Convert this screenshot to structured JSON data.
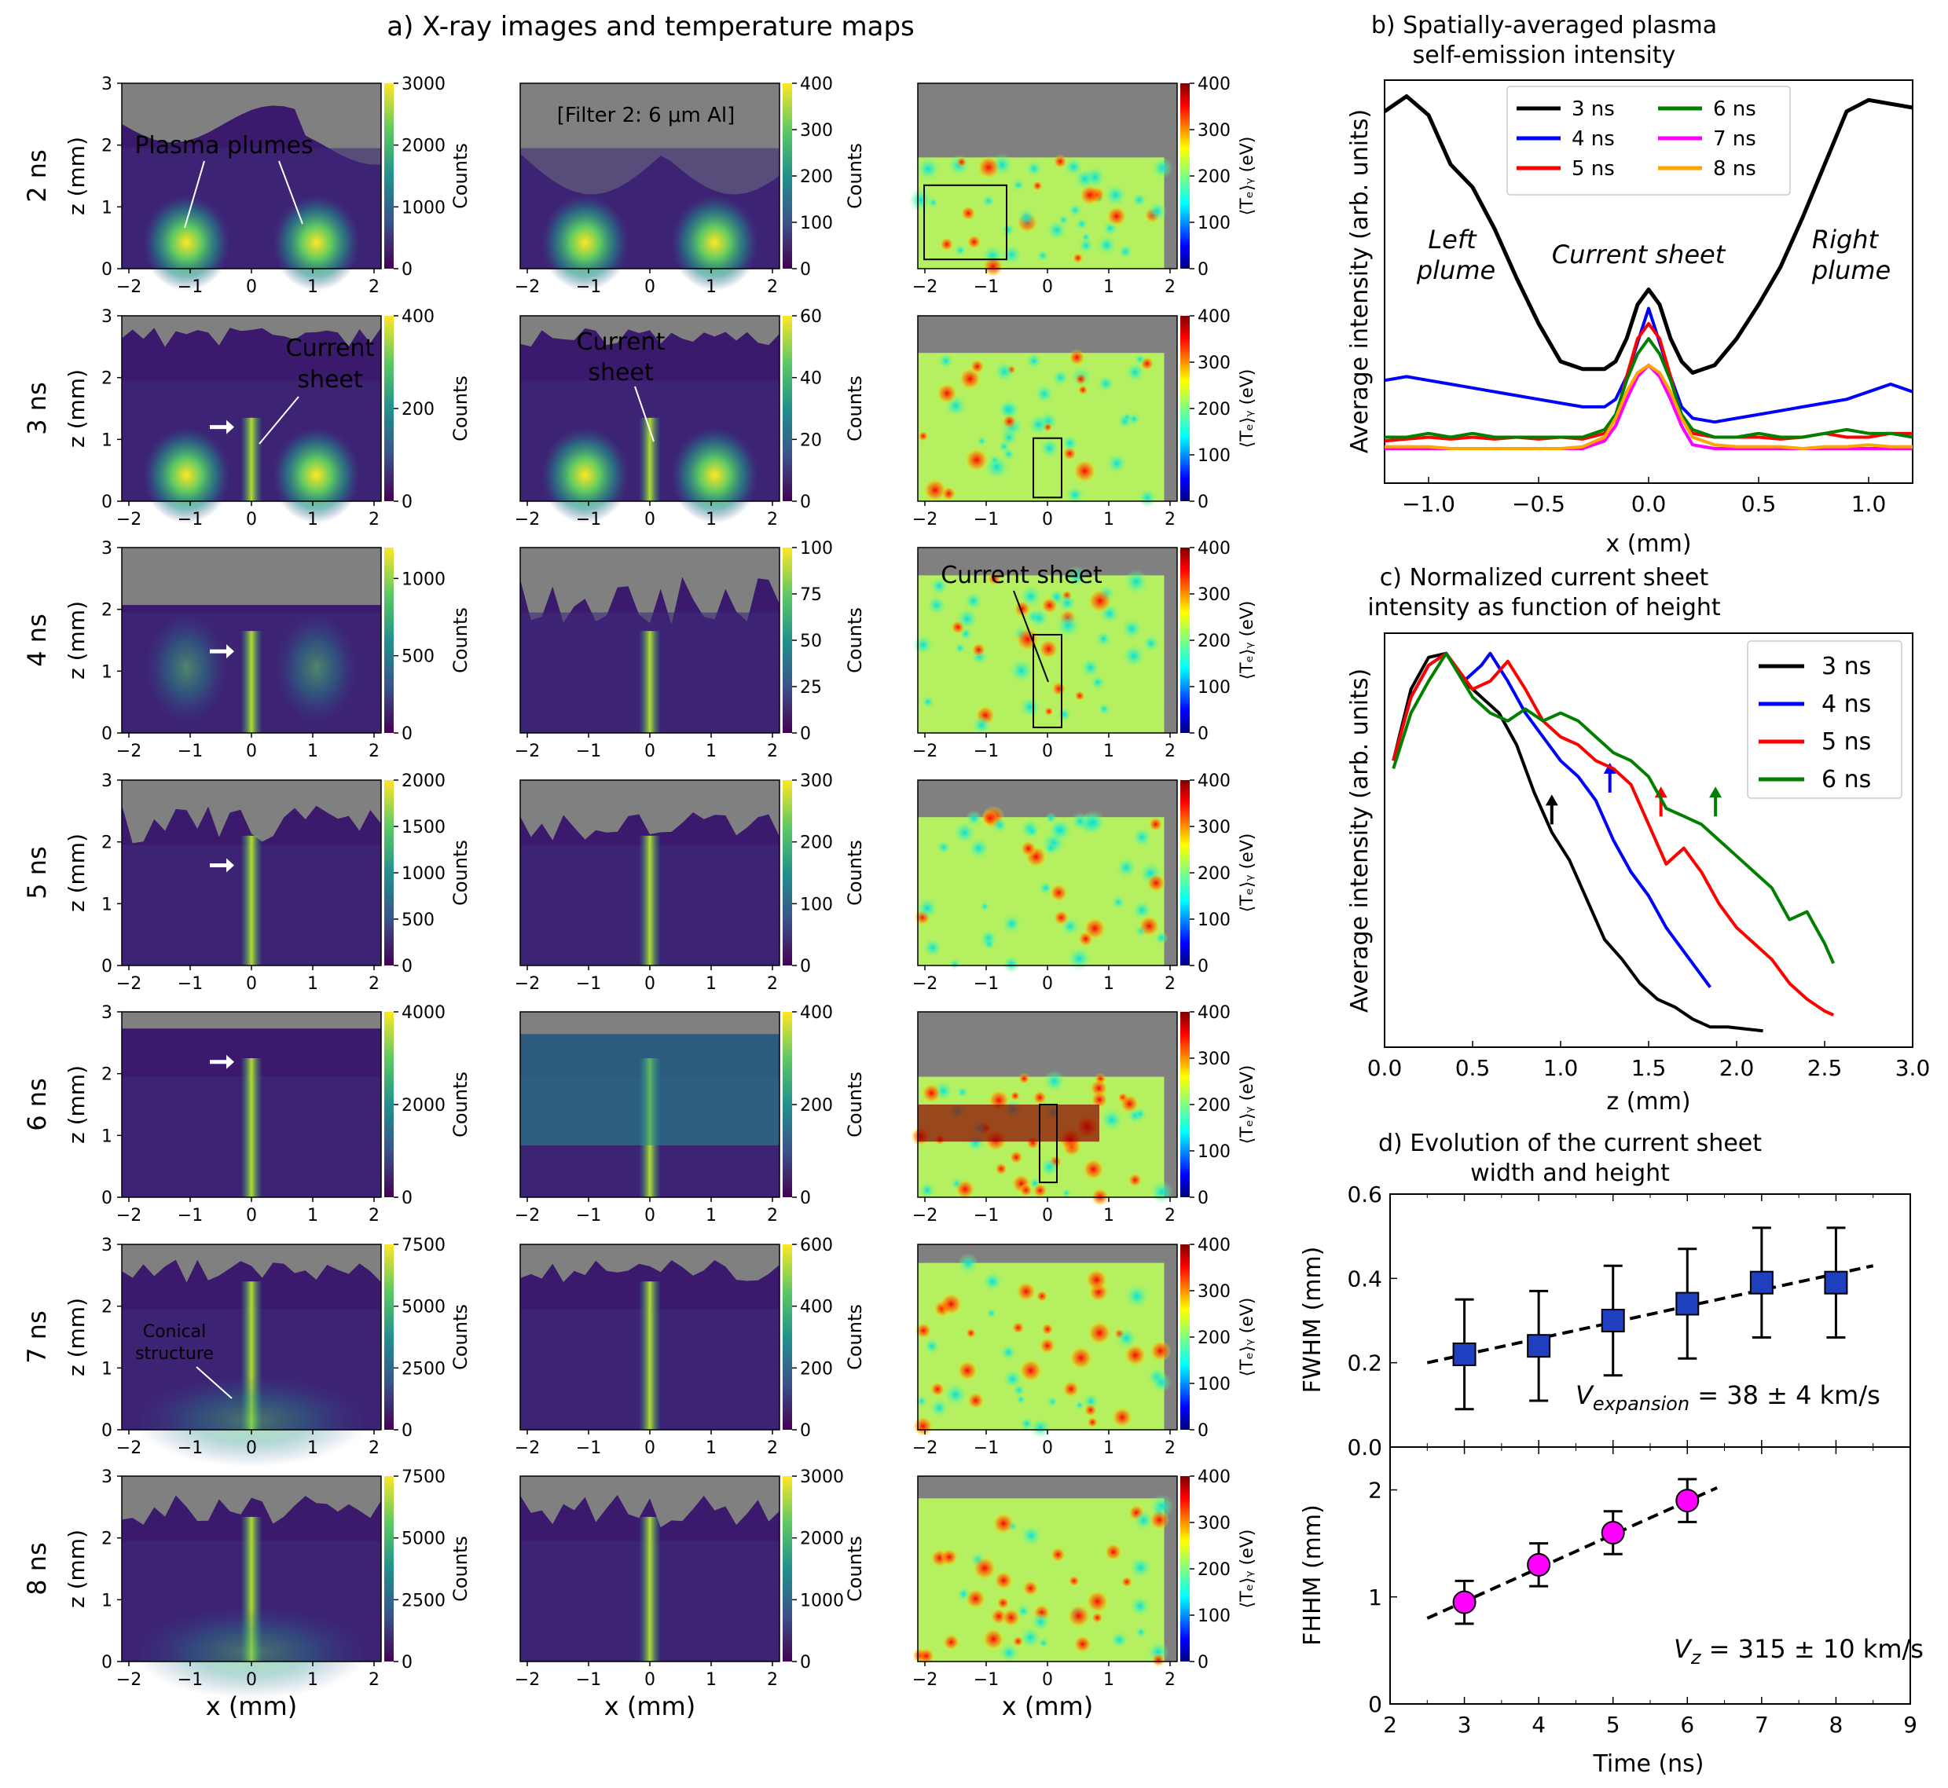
{
  "panel_a": {
    "title": "a) X-ray images and temperature maps",
    "rows": [
      "2 ns",
      "3 ns",
      "4 ns",
      "5 ns",
      "6 ns",
      "7 ns",
      "8 ns"
    ],
    "ylabel": "z (mm)",
    "xlabel": "x (mm)",
    "counts_label": "Counts",
    "temp_label": "⟨Tₑ⟩ᵧ (eV)",
    "xticks": [
      "−2",
      "−1",
      "0",
      "1",
      "2"
    ],
    "zticks": [
      "0",
      "1",
      "2",
      "3"
    ],
    "cbar_col1": [
      [
        "0",
        "1000",
        "2000",
        "3000"
      ],
      [
        "0",
        "200",
        "400"
      ],
      [
        "0",
        "500",
        "1000"
      ],
      [
        "0",
        "500",
        "1000",
        "1500",
        "2000"
      ],
      [
        "0",
        "2000",
        "4000"
      ],
      [
        "0",
        "2500",
        "5000",
        "7500"
      ],
      [
        "0",
        "2500",
        "5000",
        "7500"
      ]
    ],
    "cbar_col2": [
      [
        "0",
        "100",
        "200",
        "300",
        "400"
      ],
      [
        "0",
        "20",
        "40",
        "60"
      ],
      [
        "0",
        "25",
        "50",
        "75",
        "100"
      ],
      [
        "0",
        "100",
        "200",
        "300"
      ],
      [
        "0",
        "200",
        "400"
      ],
      [
        "0",
        "200",
        "400",
        "600"
      ],
      [
        "0",
        "1000",
        "2000",
        "3000"
      ]
    ],
    "cbar_col3": [
      "0",
      "100",
      "200",
      "300",
      "400"
    ],
    "annotations": {
      "plasma_plumes": "Plasma plumes",
      "filter": "[Filter 2: 6 μm Al]",
      "current": "Current",
      "sheet": "sheet",
      "current_sheet": "Current sheet",
      "conical": "Conical",
      "structure": "structure"
    }
  },
  "panel_b": {
    "title_line1": "b) Spatially-averaged plasma",
    "title_line2": "self-emission intensity",
    "ylabel": "Average intensity (arb. units)",
    "xlabel": "x (mm)",
    "labels": {
      "left1": "Left",
      "left2": "plume",
      "center": "Current sheet",
      "right1": "Right",
      "right2": "plume"
    }
  },
  "panel_c": {
    "title_line1": "c) Normalized current sheet",
    "title_line2": "intensity as function of height",
    "ylabel": "Average intensity (arb. units)",
    "xlabel": "z (mm)"
  },
  "panel_d": {
    "title_line1": "d) Evolution of the current sheet",
    "title_line2": "width and height",
    "ylabel_top": "FWHM (mm)",
    "ylabel_bottom": "FHHM (mm)",
    "xlabel": "Time (ns)",
    "annot_top": "V_expansion = 38 ± 4 km/s",
    "annot_top_v": "V",
    "annot_top_sub": "expansion",
    "annot_top_rest": " = 38 ± 4 km/s",
    "annot_bottom_v": "V",
    "annot_bottom_sub": "z",
    "annot_bottom_rest": " = 315 ± 10 km/s"
  },
  "chart_data": [
    {
      "type": "line",
      "title": "b) Spatially-averaged plasma self-emission intensity",
      "xlabel": "x (mm)",
      "ylabel": "Average intensity (arb. units)",
      "xlim": [
        -1.2,
        1.2
      ],
      "ylim": [
        0,
        1
      ],
      "xticks": [
        -1.0,
        -0.5,
        0.0,
        0.5,
        1.0
      ],
      "x": [
        -1.2,
        -1.1,
        -1.0,
        -0.9,
        -0.8,
        -0.7,
        -0.6,
        -0.5,
        -0.4,
        -0.3,
        -0.2,
        -0.15,
        -0.1,
        -0.05,
        0.0,
        0.05,
        0.1,
        0.15,
        0.2,
        0.3,
        0.4,
        0.5,
        0.6,
        0.7,
        0.8,
        0.9,
        1.0,
        1.1,
        1.2
      ],
      "series": [
        {
          "name": "3 ns",
          "color": "#000000",
          "values": [
            0.96,
            1.0,
            0.95,
            0.82,
            0.76,
            0.65,
            0.52,
            0.4,
            0.3,
            0.28,
            0.28,
            0.3,
            0.36,
            0.45,
            0.49,
            0.45,
            0.36,
            0.3,
            0.27,
            0.29,
            0.36,
            0.45,
            0.55,
            0.68,
            0.82,
            0.96,
            0.99,
            0.98,
            0.97
          ]
        },
        {
          "name": "4 ns",
          "color": "#0000ff",
          "values": [
            0.25,
            0.26,
            0.25,
            0.24,
            0.23,
            0.22,
            0.21,
            0.2,
            0.19,
            0.18,
            0.18,
            0.2,
            0.26,
            0.35,
            0.44,
            0.35,
            0.26,
            0.18,
            0.15,
            0.14,
            0.15,
            0.16,
            0.17,
            0.18,
            0.19,
            0.2,
            0.22,
            0.24,
            0.22
          ]
        },
        {
          "name": "5 ns",
          "color": "#ff0000",
          "values": [
            0.09,
            0.095,
            0.1,
            0.095,
            0.1,
            0.095,
            0.1,
            0.095,
            0.1,
            0.095,
            0.11,
            0.15,
            0.26,
            0.36,
            0.4,
            0.36,
            0.26,
            0.15,
            0.11,
            0.1,
            0.1,
            0.1,
            0.095,
            0.1,
            0.11,
            0.1,
            0.1,
            0.11,
            0.11
          ]
        },
        {
          "name": "6 ns",
          "color": "#007f00",
          "values": [
            0.1,
            0.1,
            0.11,
            0.1,
            0.11,
            0.1,
            0.1,
            0.1,
            0.1,
            0.1,
            0.12,
            0.16,
            0.25,
            0.32,
            0.36,
            0.32,
            0.25,
            0.16,
            0.12,
            0.1,
            0.1,
            0.11,
            0.1,
            0.1,
            0.11,
            0.12,
            0.11,
            0.11,
            0.1
          ]
        },
        {
          "name": "7 ns",
          "color": "#ff00ff",
          "values": [
            0.07,
            0.07,
            0.07,
            0.07,
            0.07,
            0.07,
            0.07,
            0.07,
            0.07,
            0.07,
            0.09,
            0.13,
            0.2,
            0.26,
            0.29,
            0.26,
            0.2,
            0.13,
            0.08,
            0.07,
            0.07,
            0.07,
            0.07,
            0.07,
            0.07,
            0.07,
            0.07,
            0.07,
            0.07
          ]
        },
        {
          "name": "8 ns",
          "color": "#ffa500",
          "values": [
            0.075,
            0.075,
            0.075,
            0.07,
            0.07,
            0.07,
            0.07,
            0.07,
            0.07,
            0.075,
            0.1,
            0.15,
            0.22,
            0.27,
            0.29,
            0.27,
            0.22,
            0.15,
            0.1,
            0.08,
            0.075,
            0.075,
            0.075,
            0.07,
            0.075,
            0.075,
            0.08,
            0.075,
            0.075
          ]
        }
      ],
      "legend_location": "top-center"
    },
    {
      "type": "line",
      "title": "c) Normalized current sheet intensity as function of height",
      "xlabel": "z (mm)",
      "ylabel": "Average intensity (arb. units)",
      "xlim": [
        0.0,
        3.0
      ],
      "ylim": [
        0,
        1
      ],
      "xticks": [
        0.0,
        0.5,
        1.0,
        1.5,
        2.0,
        2.5,
        3.0
      ],
      "series": [
        {
          "name": "3 ns",
          "color": "#000000",
          "x": [
            0.05,
            0.15,
            0.25,
            0.35,
            0.45,
            0.55,
            0.65,
            0.75,
            0.85,
            0.95,
            1.05,
            1.15,
            1.25,
            1.35,
            1.45,
            1.55,
            1.65,
            1.75,
            1.85,
            1.95,
            2.05,
            2.15
          ],
          "values": [
            0.7,
            0.88,
            0.96,
            0.97,
            0.9,
            0.86,
            0.82,
            0.74,
            0.62,
            0.52,
            0.45,
            0.35,
            0.25,
            0.2,
            0.14,
            0.1,
            0.08,
            0.05,
            0.03,
            0.03,
            0.025,
            0.02
          ],
          "arrow_z": 0.95
        },
        {
          "name": "4 ns",
          "color": "#0000ff",
          "x": [
            0.05,
            0.15,
            0.25,
            0.35,
            0.45,
            0.55,
            0.6,
            0.7,
            0.8,
            0.9,
            1.0,
            1.1,
            1.2,
            1.3,
            1.4,
            1.5,
            1.6,
            1.7,
            1.8,
            1.85
          ],
          "values": [
            0.7,
            0.86,
            0.94,
            0.97,
            0.9,
            0.94,
            0.97,
            0.9,
            0.82,
            0.76,
            0.7,
            0.66,
            0.6,
            0.5,
            0.42,
            0.36,
            0.28,
            0.22,
            0.16,
            0.13
          ],
          "arrow_z": 1.28
        },
        {
          "name": "5 ns",
          "color": "#ff0000",
          "x": [
            0.05,
            0.15,
            0.25,
            0.35,
            0.5,
            0.6,
            0.7,
            0.8,
            0.9,
            1.0,
            1.1,
            1.2,
            1.3,
            1.4,
            1.5,
            1.6,
            1.7,
            1.8,
            1.9,
            2.0,
            2.1,
            2.2,
            2.3,
            2.4,
            2.5,
            2.55
          ],
          "values": [
            0.7,
            0.86,
            0.94,
            0.97,
            0.88,
            0.9,
            0.95,
            0.88,
            0.8,
            0.76,
            0.74,
            0.7,
            0.68,
            0.64,
            0.54,
            0.44,
            0.48,
            0.42,
            0.34,
            0.28,
            0.24,
            0.2,
            0.14,
            0.1,
            0.07,
            0.06
          ],
          "arrow_z": 1.57
        },
        {
          "name": "6 ns",
          "color": "#007f00",
          "x": [
            0.05,
            0.15,
            0.25,
            0.35,
            0.5,
            0.6,
            0.7,
            0.8,
            0.9,
            1.0,
            1.1,
            1.2,
            1.3,
            1.4,
            1.5,
            1.6,
            1.7,
            1.8,
            1.9,
            2.0,
            2.1,
            2.2,
            2.3,
            2.4,
            2.5,
            2.55
          ],
          "values": [
            0.68,
            0.82,
            0.9,
            0.97,
            0.86,
            0.82,
            0.8,
            0.83,
            0.8,
            0.82,
            0.8,
            0.76,
            0.72,
            0.7,
            0.66,
            0.58,
            0.56,
            0.54,
            0.5,
            0.46,
            0.42,
            0.38,
            0.3,
            0.32,
            0.24,
            0.19
          ],
          "arrow_z": 1.88
        }
      ],
      "legend_location": "top-right"
    },
    {
      "type": "scatter",
      "title": "d) Evolution of the current sheet width",
      "xlabel": "Time (ns)",
      "ylabel": "FWHM (mm)",
      "xlim": [
        2,
        9
      ],
      "ylim": [
        0.0,
        0.6
      ],
      "x": [
        3,
        4,
        5,
        6,
        7,
        8
      ],
      "values": [
        0.22,
        0.24,
        0.3,
        0.34,
        0.39,
        0.39
      ],
      "errors": [
        0.13,
        0.13,
        0.13,
        0.13,
        0.13,
        0.13
      ],
      "fit": {
        "x": [
          2.5,
          8.5
        ],
        "values": [
          0.2,
          0.43
        ]
      },
      "annotation": "V_expansion = 38 ± 4 km/s"
    },
    {
      "type": "scatter",
      "title": "d) Evolution of the current sheet height",
      "xlabel": "Time (ns)",
      "ylabel": "FHHM (mm)",
      "xlim": [
        2,
        9
      ],
      "ylim": [
        0,
        2.4
      ],
      "x": [
        3,
        4,
        5,
        6
      ],
      "values": [
        0.95,
        1.3,
        1.6,
        1.9
      ],
      "errors": [
        0.2,
        0.2,
        0.2,
        0.2
      ],
      "fit": {
        "x": [
          2.5,
          6.4
        ],
        "values": [
          0.8,
          2.02
        ]
      },
      "annotation": "V_z = 315 ± 10 km/s"
    }
  ]
}
